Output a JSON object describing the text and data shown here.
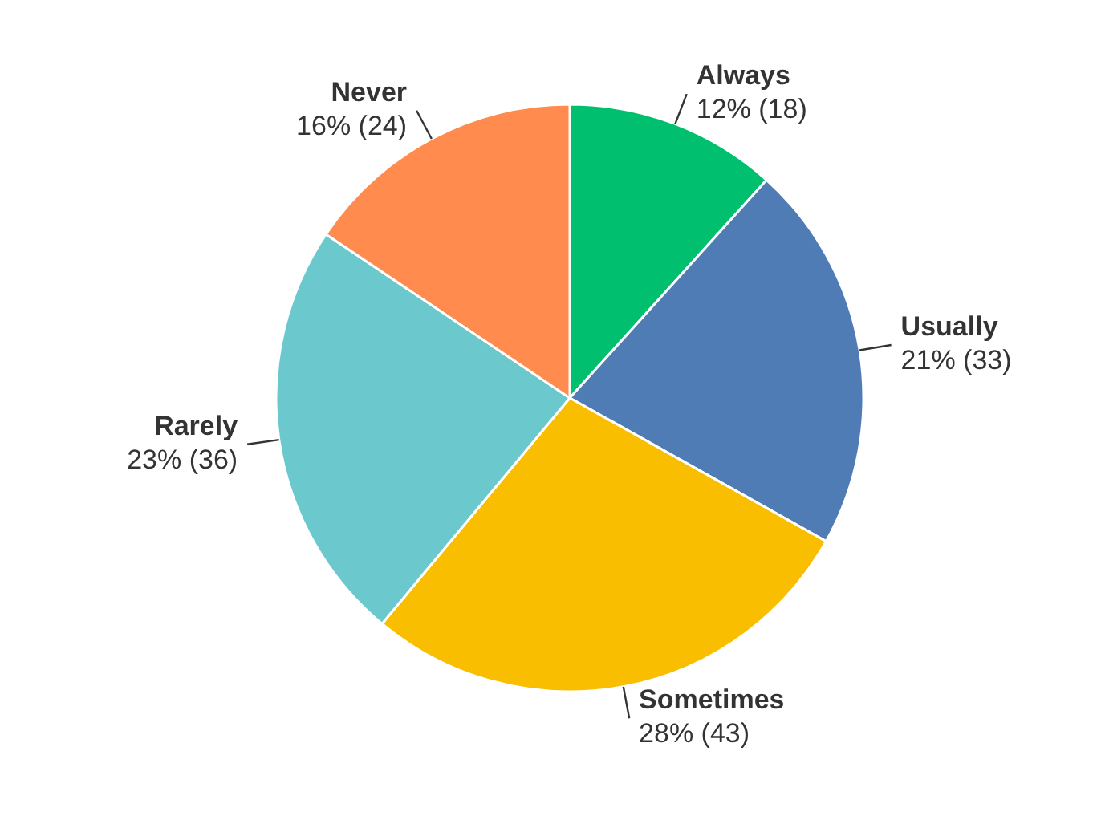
{
  "chart_data": {
    "type": "pie",
    "categories": [
      "Always",
      "Usually",
      "Sometimes",
      "Rarely",
      "Never"
    ],
    "values": [
      18,
      33,
      43,
      36,
      24
    ],
    "value_labels": [
      "12% (18)",
      "21% (33)",
      "28% (43)",
      "23% (36)",
      "16% (24)"
    ],
    "colors": [
      "#00bf6f",
      "#507cb6",
      "#f9be00",
      "#6bc8cd",
      "#ff8b4f"
    ],
    "legend": false
  }
}
